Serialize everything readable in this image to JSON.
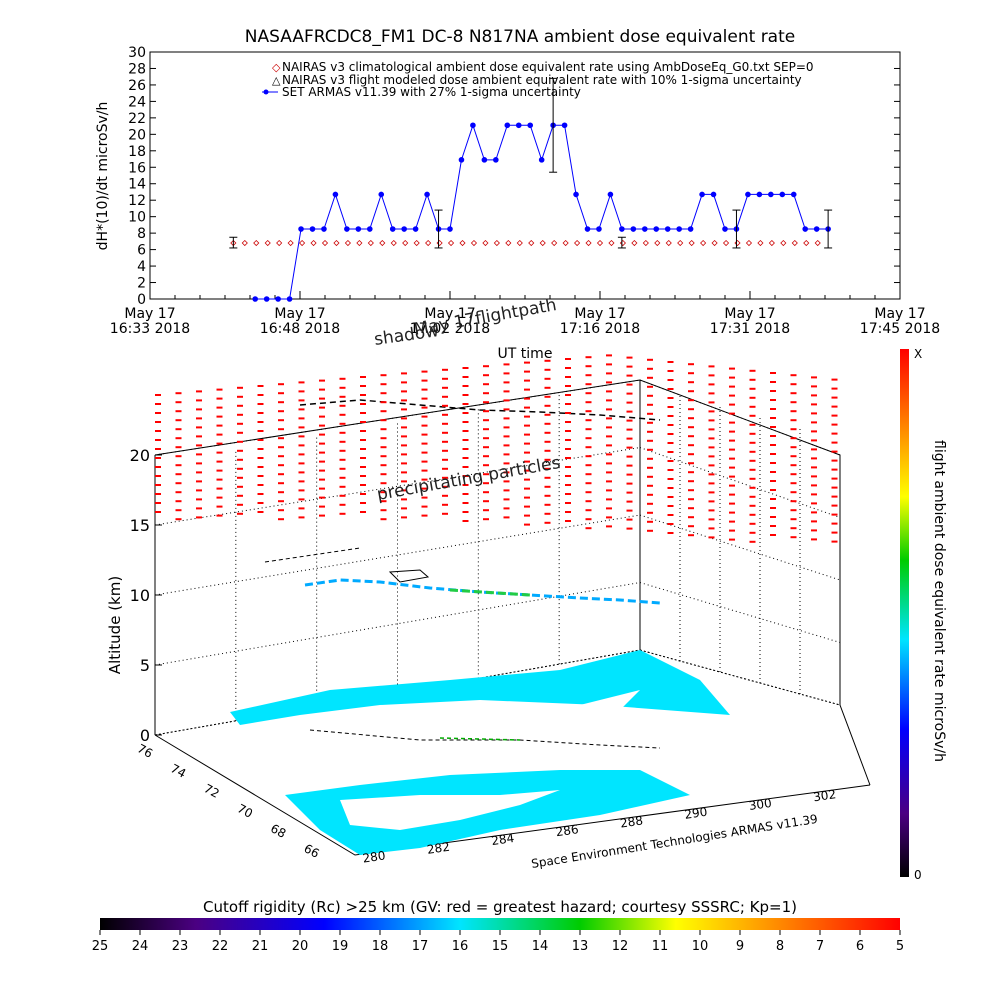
{
  "top_chart": {
    "title": "NASAAFRCDC8_FM1 DC-8    N817NA ambient dose equivalent rate",
    "ylabel": "dH*(10)/dt microSv/h",
    "xlabel": "UT time",
    "y_ticks": [
      "0",
      "2",
      "4",
      "6",
      "8",
      "10",
      "12",
      "14",
      "16",
      "18",
      "20",
      "22",
      "24",
      "26",
      "28",
      "30"
    ],
    "x_ticks": [
      {
        "top": "May 17",
        "bottom": "16:33 2018"
      },
      {
        "top": "May 17",
        "bottom": "16:48 2018"
      },
      {
        "top": "May 17",
        "bottom": "17:02 2018"
      },
      {
        "top": "May 17",
        "bottom": "17:16 2018"
      },
      {
        "top": "May 17",
        "bottom": "17:31 2018"
      },
      {
        "top": "May 17",
        "bottom": "17:45 2018"
      }
    ],
    "legend": [
      "NAIRAS v3 climatological ambient dose equivalent rate using AmbDoseEq_G0.txt SEP=0",
      "NAIRAS v3 flight modeled dose ambient equivalent rate with 10% 1-sigma uncertainty",
      "SET ARMAS v11.39 with 27% 1-sigma uncertainty"
    ],
    "colors": {
      "armas": "#0000ff",
      "nairas": "#cc0000",
      "axis": "#000000"
    }
  },
  "chart_data": {
    "type": "line",
    "title": "NASAAFRCDC8_FM1 DC-8    N817NA ambient dose equivalent rate",
    "xlabel": "UT time",
    "ylabel": "dH*(10)/dt microSv/h",
    "xlim": [
      "16:33",
      "17:45"
    ],
    "ylim": [
      0,
      30
    ],
    "x_minutes_from_1633": [
      0,
      72
    ],
    "series": [
      {
        "name": "SET ARMAS v11.39 with 27% 1-sigma uncertainty",
        "x": [
          10.1,
          11.2,
          12.3,
          13.4,
          14.5,
          15.6,
          16.7,
          17.8,
          18.9,
          20.0,
          21.1,
          22.2,
          23.3,
          24.4,
          25.5,
          26.6,
          27.7,
          28.8,
          29.9,
          31.0,
          32.1,
          33.2,
          34.3,
          35.4,
          36.5,
          37.6,
          38.7,
          39.8,
          40.9,
          42.0,
          43.1,
          44.2,
          45.3,
          46.4,
          47.5,
          48.6,
          49.7,
          50.8,
          51.9,
          53.0,
          54.1,
          55.2,
          56.3,
          57.4,
          58.5,
          59.6,
          60.7,
          61.8,
          62.9,
          64.0,
          65.1
        ],
        "values": [
          0,
          0,
          0,
          0,
          8.5,
          8.5,
          8.5,
          12.7,
          8.5,
          8.5,
          8.5,
          12.7,
          8.5,
          8.5,
          8.5,
          12.7,
          8.5,
          8.5,
          16.9,
          21.1,
          16.9,
          16.9,
          21.1,
          21.1,
          21.1,
          16.9,
          21.1,
          21.1,
          12.7,
          8.5,
          8.5,
          12.7,
          8.5,
          8.5,
          8.5,
          8.5,
          8.5,
          8.5,
          8.5,
          12.7,
          12.7,
          8.5,
          8.5,
          12.7,
          12.7,
          12.7,
          12.7,
          12.7,
          8.5,
          8.5,
          8.5
        ]
      },
      {
        "name": "NAIRAS v3 climatological ambient dose equivalent rate using AmbDoseEq_G0.txt SEP=0",
        "x": [
          8,
          65
        ],
        "values": [
          6.8,
          6.8
        ]
      }
    ]
  },
  "error_bars": [
    {
      "x": 8.0,
      "y": 6.8,
      "lo": 6.2,
      "hi": 7.5
    },
    {
      "x": 27.7,
      "y": 8.5,
      "lo": 6.2,
      "hi": 10.8
    },
    {
      "x": 38.7,
      "y": 21.1,
      "lo": 15.4,
      "hi": 26.8
    },
    {
      "x": 45.3,
      "y": 6.8,
      "lo": 6.2,
      "hi": 7.5
    },
    {
      "x": 56.3,
      "y": 8.5,
      "lo": 6.2,
      "hi": 10.8
    },
    {
      "x": 65.1,
      "y": 8.5,
      "lo": 6.2,
      "hi": 10.8
    }
  ],
  "plot3d": {
    "z_label": "Altitude (km)",
    "z_ticks": [
      "0",
      "5",
      "10",
      "15",
      "20"
    ],
    "lat_ticks": [
      "76",
      "74",
      "72",
      "70",
      "68",
      "66"
    ],
    "lon_ticks": [
      "280",
      "282",
      "284",
      "286",
      "288",
      "290",
      "300",
      "302"
    ],
    "credit": "Space Environment Technologies ARMAS v11.39",
    "annot_shadow": "shadow",
    "annot_flightpath": "May 17flightpath",
    "annot_precip": "precipitating particles"
  },
  "right_colorbar": {
    "label": "flight ambient dose equivalent rate microSv/h",
    "top_label": "X",
    "bottom_label": "0"
  },
  "bottom_colorbar": {
    "title": "Cutoff rigidity (Rc) >25 km (GV: red = greatest hazard; courtesy SSSRC; Kp=1)",
    "ticks": [
      "25",
      "24",
      "23",
      "22",
      "21",
      "20",
      "19",
      "18",
      "17",
      "16",
      "15",
      "14",
      "13",
      "12",
      "11",
      "10",
      "9",
      "8",
      "7",
      "6",
      "5"
    ]
  }
}
